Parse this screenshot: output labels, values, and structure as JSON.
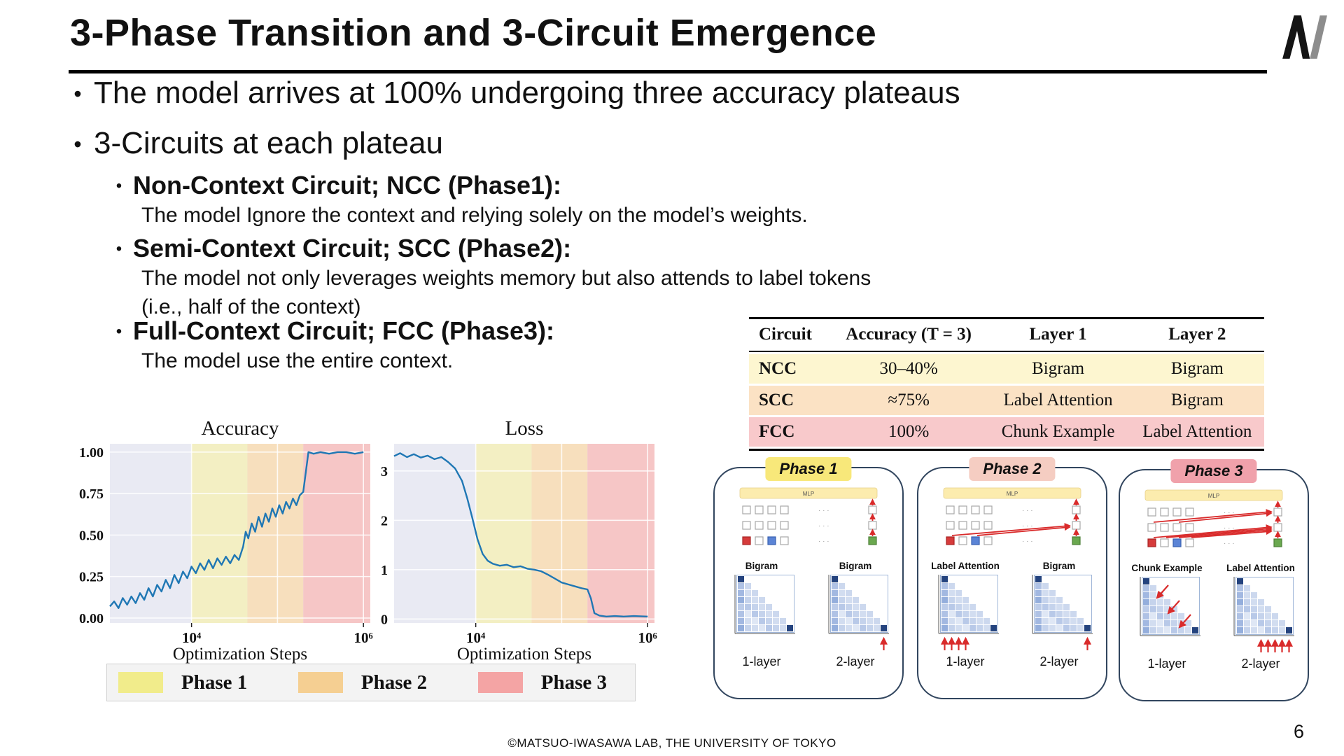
{
  "slide": {
    "title": "3-Phase Transition and 3-Circuit Emergence",
    "footer": "©MATSUO-IWASAWA LAB, THE UNIVERSITY OF TOKYO",
    "page_number": "6"
  },
  "icons": {
    "bullet": "•"
  },
  "bullets": {
    "b1": "The model arrives at 100% undergoing three accuracy plateaus",
    "b2": "3-Circuits at each plateau",
    "sub1_heading": "Non-Context Circuit; NCC (Phase1):",
    "sub1_body": "The model Ignore the context and relying solely on the model’s weights.",
    "sub2_heading": "Semi-Context Circuit; SCC (Phase2):",
    "sub2_body1": "The model not only leverages weights memory but also attends to label tokens",
    "sub2_body2": "(i.e., half of the context)",
    "sub3_heading": "Full-Context Circuit; FCC (Phase3):",
    "sub3_body": "The model use the entire context."
  },
  "table": {
    "headers": [
      "Circuit",
      "Accuracy (T = 3)",
      "Layer 1",
      "Layer 2"
    ],
    "rows": [
      {
        "circuit": "NCC",
        "accuracy": "30–40%",
        "layer1": "Bigram",
        "layer2": "Bigram",
        "row_color": "#fdf6d0"
      },
      {
        "circuit": "SCC",
        "accuracy": "≈75%",
        "layer1": "Label Attention",
        "layer2": "Bigram",
        "row_color": "#fbe2c4"
      },
      {
        "circuit": "FCC",
        "accuracy": "100%",
        "layer1": "Chunk Example",
        "layer2": "Label Attention",
        "row_color": "#f8c9cb"
      }
    ]
  },
  "legend": {
    "items": [
      {
        "label": "Phase 1",
        "color": "#f1ec8b"
      },
      {
        "label": "Phase 2",
        "color": "#f5cf92"
      },
      {
        "label": "Phase 3",
        "color": "#f4a4a4"
      }
    ]
  },
  "chart_data": [
    {
      "type": "line",
      "title": "Accuracy",
      "xlabel": "Optimization Steps",
      "x_scale": "log10",
      "xlim": [
        3.05,
        6.08
      ],
      "ylim": [
        -0.03,
        1.05
      ],
      "plot_bg": "#e9eaf3",
      "line_color": "#1f77b4",
      "grid": true,
      "yticks": [
        {
          "v": 0,
          "label": "0.00"
        },
        {
          "v": 0.25,
          "label": "0.25"
        },
        {
          "v": 0.5,
          "label": "0.50"
        },
        {
          "v": 0.75,
          "label": "0.75"
        },
        {
          "v": 1,
          "label": "1.00"
        }
      ],
      "xticks": [
        {
          "v": 4,
          "label": "10⁴"
        },
        {
          "v": 6,
          "label": "10⁶"
        }
      ],
      "phases": [
        {
          "name": "Phase 1",
          "from": 4.0,
          "to": 4.65,
          "color": "#f3efc3"
        },
        {
          "name": "Phase 2",
          "from": 4.65,
          "to": 5.3,
          "color": "#f7dfbd"
        },
        {
          "name": "Phase 3",
          "from": 5.3,
          "to": 6.08,
          "color": "#f6c6c6"
        }
      ],
      "series": [
        {
          "name": "accuracy",
          "x": [
            3.05,
            3.1,
            3.15,
            3.2,
            3.25,
            3.3,
            3.35,
            3.4,
            3.45,
            3.5,
            3.55,
            3.6,
            3.65,
            3.7,
            3.75,
            3.8,
            3.85,
            3.9,
            3.95,
            4.0,
            4.05,
            4.1,
            4.15,
            4.2,
            4.25,
            4.3,
            4.35,
            4.4,
            4.45,
            4.5,
            4.55,
            4.6,
            4.63,
            4.66,
            4.7,
            4.74,
            4.78,
            4.82,
            4.86,
            4.9,
            4.94,
            4.98,
            5.02,
            5.06,
            5.1,
            5.14,
            5.18,
            5.22,
            5.26,
            5.3,
            5.33,
            5.36,
            5.42,
            5.5,
            5.6,
            5.7,
            5.8,
            5.9,
            6.0
          ],
          "y": [
            0.07,
            0.1,
            0.06,
            0.12,
            0.08,
            0.13,
            0.09,
            0.15,
            0.11,
            0.18,
            0.13,
            0.2,
            0.16,
            0.23,
            0.18,
            0.26,
            0.21,
            0.28,
            0.24,
            0.31,
            0.27,
            0.33,
            0.29,
            0.35,
            0.3,
            0.36,
            0.32,
            0.37,
            0.33,
            0.38,
            0.35,
            0.43,
            0.52,
            0.48,
            0.57,
            0.52,
            0.61,
            0.55,
            0.63,
            0.58,
            0.66,
            0.61,
            0.68,
            0.63,
            0.7,
            0.66,
            0.72,
            0.68,
            0.74,
            0.76,
            0.88,
            1.0,
            0.99,
            1.0,
            0.99,
            1.0,
            1.0,
            0.99,
            1.0
          ]
        }
      ]
    },
    {
      "type": "line",
      "title": "Loss",
      "xlabel": "Optimization Steps",
      "x_scale": "log10",
      "xlim": [
        3.05,
        6.08
      ],
      "ylim": [
        -0.08,
        3.55
      ],
      "plot_bg": "#e9eaf3",
      "line_color": "#1f77b4",
      "grid": true,
      "yticks": [
        {
          "v": 0,
          "label": "0"
        },
        {
          "v": 1,
          "label": "1"
        },
        {
          "v": 2,
          "label": "2"
        },
        {
          "v": 3,
          "label": "3"
        }
      ],
      "xticks": [
        {
          "v": 4,
          "label": "10⁴"
        },
        {
          "v": 6,
          "label": "10⁶"
        }
      ],
      "phases": [
        {
          "name": "Phase 1",
          "from": 4.0,
          "to": 4.65,
          "color": "#f3efc3"
        },
        {
          "name": "Phase 2",
          "from": 4.65,
          "to": 5.3,
          "color": "#f7dfbd"
        },
        {
          "name": "Phase 3",
          "from": 5.3,
          "to": 6.08,
          "color": "#f6c6c6"
        }
      ],
      "series": [
        {
          "name": "loss",
          "x": [
            3.05,
            3.12,
            3.2,
            3.28,
            3.36,
            3.44,
            3.52,
            3.6,
            3.68,
            3.76,
            3.84,
            3.9,
            3.96,
            4.02,
            4.08,
            4.14,
            4.2,
            4.28,
            4.36,
            4.44,
            4.52,
            4.6,
            4.68,
            4.76,
            4.84,
            4.92,
            5.0,
            5.08,
            5.16,
            5.24,
            5.3,
            5.34,
            5.38,
            5.44,
            5.52,
            5.62,
            5.72,
            5.84,
            6.0
          ],
          "y": [
            3.3,
            3.36,
            3.28,
            3.34,
            3.27,
            3.31,
            3.24,
            3.28,
            3.18,
            3.05,
            2.8,
            2.45,
            2.05,
            1.62,
            1.32,
            1.18,
            1.12,
            1.08,
            1.1,
            1.05,
            1.07,
            1.02,
            1.0,
            0.97,
            0.9,
            0.82,
            0.74,
            0.7,
            0.66,
            0.62,
            0.6,
            0.42,
            0.12,
            0.07,
            0.05,
            0.06,
            0.05,
            0.06,
            0.05
          ]
        }
      ]
    }
  ],
  "phase_cards": [
    {
      "badge": "Phase 1",
      "badge_color": "#f8e87a",
      "mlp_label": "MLP",
      "diagram_mode": "ncc",
      "heatmaps": [
        {
          "label": "Bigram",
          "caption": "1-layer",
          "arrow_cols": []
        },
        {
          "label": "Bigram",
          "caption": "2-layer",
          "arrow_cols": [
            7
          ]
        }
      ]
    },
    {
      "badge": "Phase 2",
      "badge_color": "#f5cdc2",
      "mlp_label": "MLP",
      "diagram_mode": "scc",
      "heatmaps": [
        {
          "label": "Label Attention",
          "caption": "1-layer",
          "arrow_cols": [
            0,
            1,
            2,
            3
          ]
        },
        {
          "label": "Bigram",
          "caption": "2-layer",
          "arrow_cols": [
            7
          ]
        }
      ]
    },
    {
      "badge": "Phase 3",
      "badge_color": "#f0a1ab",
      "mlp_label": "MLP",
      "diagram_mode": "fcc",
      "heatmaps": [
        {
          "label": "Chunk Example",
          "caption": "1-layer",
          "arrow_cols": [],
          "diag_arrows": true
        },
        {
          "label": "Label Attention",
          "caption": "2-layer",
          "arrow_cols": [
            3,
            4,
            5,
            6,
            7
          ]
        }
      ]
    }
  ]
}
